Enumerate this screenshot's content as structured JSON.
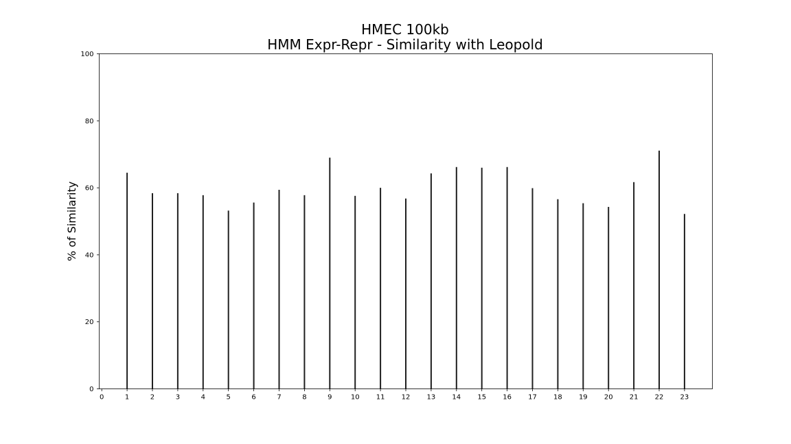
{
  "chart_data": {
    "type": "bar",
    "title": [
      "HMEC 100kb",
      "HMM Expr-Repr - Similarity with Leopold"
    ],
    "xlabel": "",
    "ylabel": "% of Similarity",
    "xlim": [
      -0.1,
      24.1
    ],
    "ylim": [
      0,
      100
    ],
    "xticks": [
      0,
      1,
      2,
      3,
      4,
      5,
      6,
      7,
      8,
      9,
      10,
      11,
      12,
      13,
      14,
      15,
      16,
      17,
      18,
      19,
      20,
      21,
      22,
      23
    ],
    "yticks": [
      0,
      20,
      40,
      60,
      80,
      100
    ],
    "grid": false,
    "bar_color": "#1f1f1f",
    "x": [
      1,
      2,
      3,
      4,
      5,
      6,
      7,
      8,
      9,
      10,
      11,
      12,
      13,
      14,
      15,
      16,
      17,
      18,
      19,
      20,
      21,
      22,
      23
    ],
    "values": [
      64.5,
      58.4,
      58.4,
      57.8,
      53.2,
      55.6,
      59.4,
      57.8,
      69.0,
      57.6,
      60.0,
      56.8,
      64.3,
      66.2,
      66.0,
      66.2,
      59.9,
      56.6,
      55.4,
      54.3,
      61.7,
      71.1,
      52.2
    ]
  }
}
